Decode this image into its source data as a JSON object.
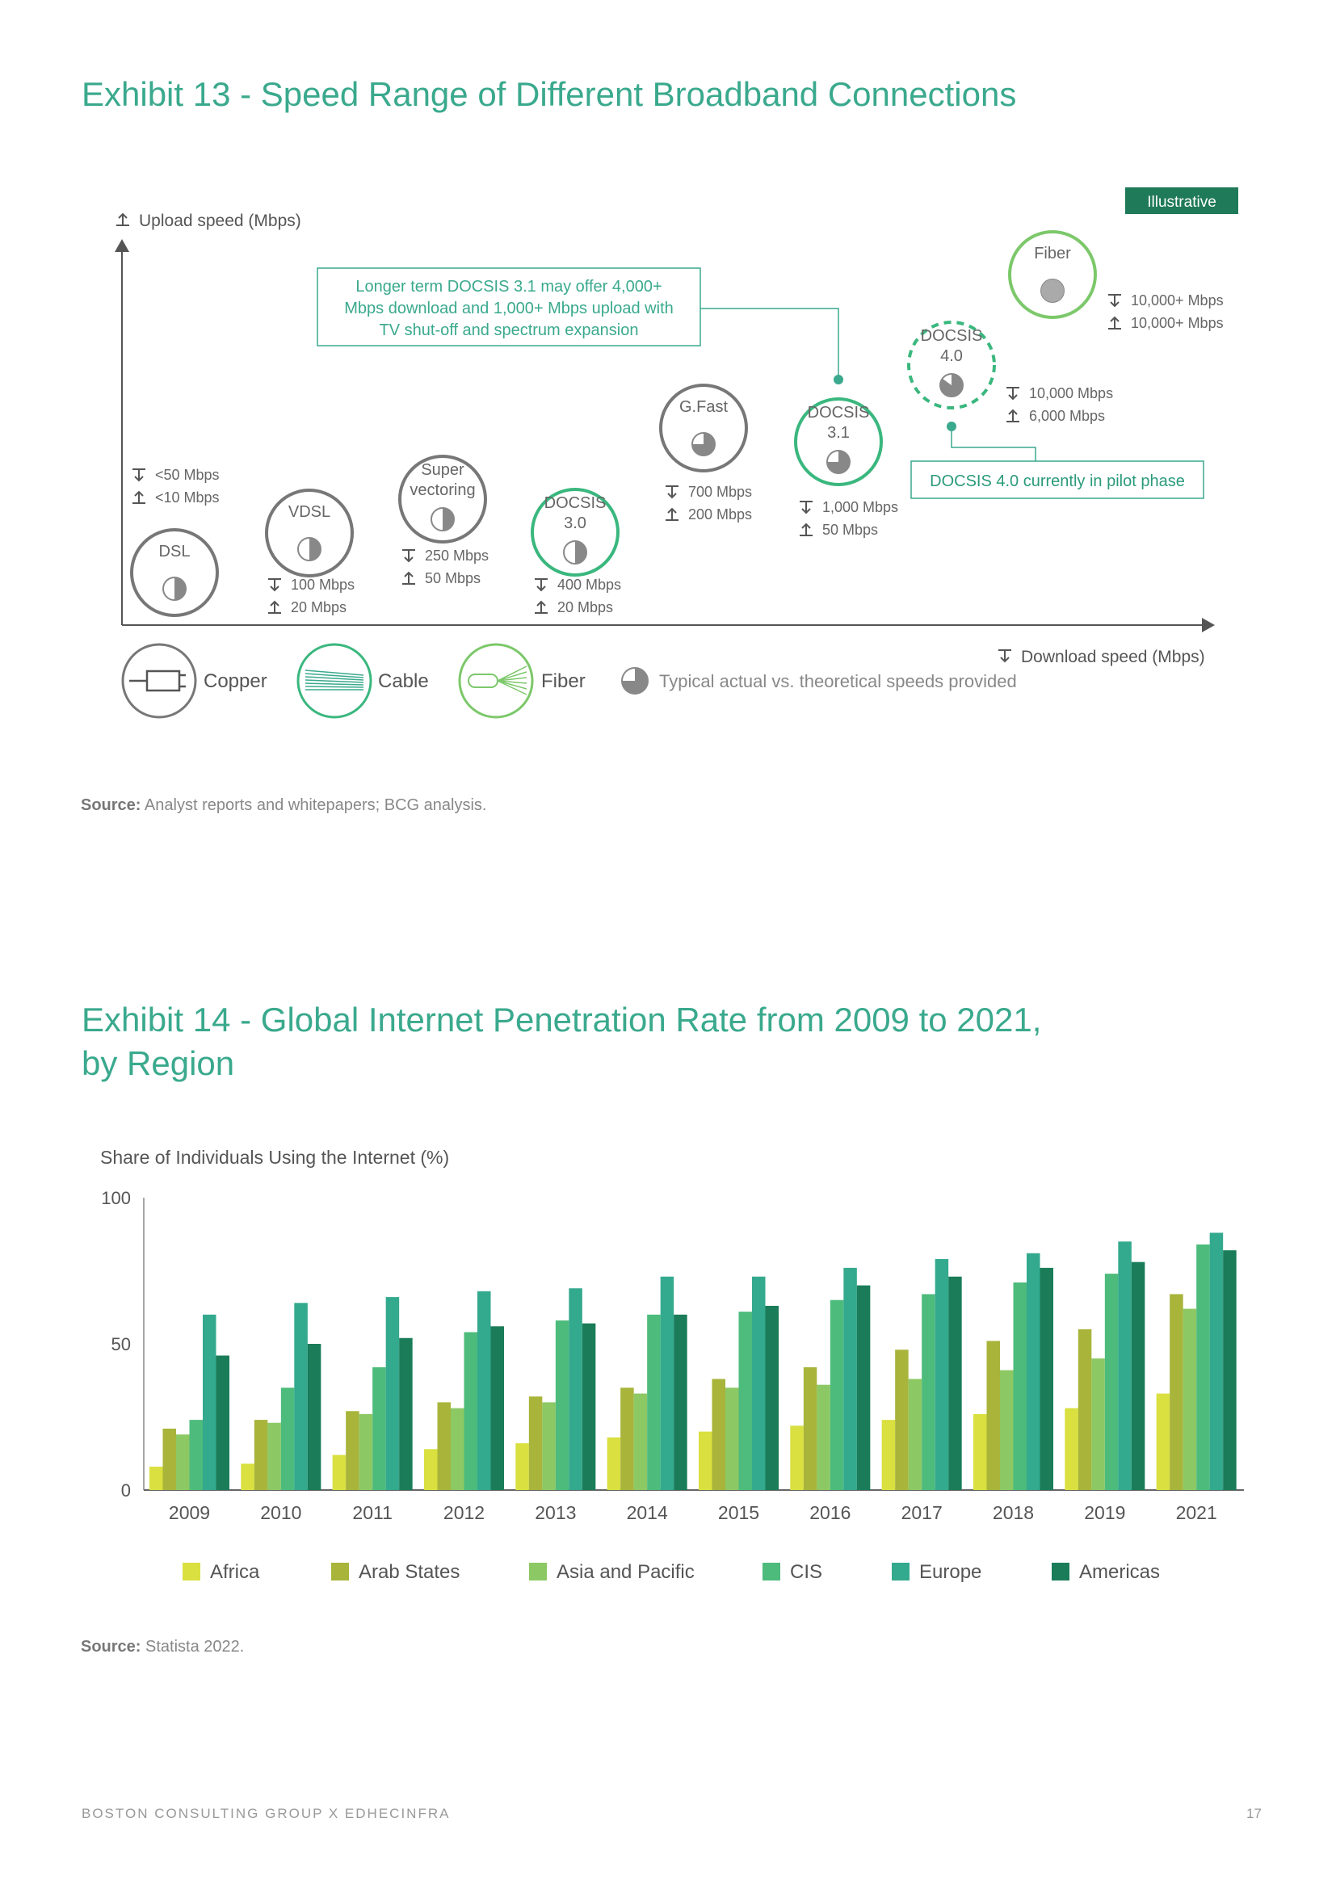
{
  "exhibit13": {
    "title": "Exhibit 13 - Speed Range of Different Broadband Connections",
    "badge": "Illustrative",
    "y_axis_label": "Upload speed (Mbps)",
    "x_axis_label": "Download speed (Mbps)",
    "callout_docsis31": [
      "Longer term DOCSIS 3.1 may offer 4,000+",
      "Mbps download and 1,000+ Mbps upload with",
      "TV shut-off and spectrum expansion"
    ],
    "callout_docsis40": "DOCSIS 4.0 currently in pilot phase",
    "technologies": [
      {
        "name": [
          "DSL"
        ],
        "type": "copper",
        "download": "<50 Mbps",
        "upload": "<10 Mbps",
        "fill": 0.5
      },
      {
        "name": [
          "VDSL"
        ],
        "type": "copper",
        "download": "100 Mbps",
        "upload": "20 Mbps",
        "fill": 0.5
      },
      {
        "name": [
          "Super",
          "vectoring"
        ],
        "type": "copper",
        "download": "250 Mbps",
        "upload": "50 Mbps",
        "fill": 0.5
      },
      {
        "name": [
          "DOCSIS",
          "3.0"
        ],
        "type": "cable",
        "download": "400 Mbps",
        "upload": "20 Mbps",
        "fill": 0.5
      },
      {
        "name": [
          "G.Fast"
        ],
        "type": "copper",
        "download": "700 Mbps",
        "upload": "200 Mbps",
        "fill": 0.75
      },
      {
        "name": [
          "DOCSIS",
          "3.1"
        ],
        "type": "cable",
        "download": "1,000 Mbps",
        "upload": "50 Mbps",
        "fill": 0.75
      },
      {
        "name": [
          "DOCSIS",
          "4.0"
        ],
        "type": "cable",
        "download": "10,000 Mbps",
        "upload": "6,000 Mbps",
        "fill": 0.85
      },
      {
        "name": [
          "Fiber"
        ],
        "type": "fiber",
        "download": "10,000+ Mbps",
        "upload": "10,000+ Mbps",
        "fill": 1.0
      }
    ],
    "legend": {
      "copper": "Copper",
      "cable": "Cable",
      "fiber": "Fiber",
      "speeds_note": "Typical actual vs. theoretical speeds provided"
    },
    "source_label": "Source:",
    "source_text": " Analyst reports and whitepapers; BCG analysis."
  },
  "exhibit14": {
    "title_line1": "Exhibit 14 - Global Internet Penetration Rate from 2009 to 2021,",
    "title_line2": "by Region",
    "source_label": "Source:",
    "source_text": " Statista 2022."
  },
  "chart_data": {
    "type": "bar",
    "title": "Exhibit 14 - Global Internet Penetration Rate from 2009 to 2021, by Region",
    "ylabel": "Share of Individuals Using the Internet (%)",
    "xlabel": "",
    "ylim": [
      0,
      100
    ],
    "yticks": [
      0,
      50,
      100
    ],
    "categories": [
      "2009",
      "2010",
      "2011",
      "2012",
      "2013",
      "2014",
      "2015",
      "2016",
      "2017",
      "2018",
      "2019",
      "2021"
    ],
    "series": [
      {
        "name": "Africa",
        "color": "#d9e03f",
        "values": [
          8,
          9,
          12,
          14,
          16,
          18,
          20,
          22,
          24,
          26,
          28,
          33
        ]
      },
      {
        "name": "Arab States",
        "color": "#a8b43a",
        "values": [
          21,
          24,
          27,
          30,
          32,
          35,
          38,
          42,
          48,
          51,
          55,
          67
        ]
      },
      {
        "name": "Asia and Pacific",
        "color": "#8cc864",
        "values": [
          19,
          23,
          26,
          28,
          30,
          33,
          35,
          36,
          38,
          41,
          45,
          62
        ]
      },
      {
        "name": "CIS",
        "color": "#4dbb7c",
        "values": [
          24,
          35,
          42,
          54,
          58,
          60,
          61,
          65,
          67,
          71,
          74,
          84
        ]
      },
      {
        "name": "Europe",
        "color": "#33a98e",
        "values": [
          60,
          64,
          66,
          68,
          69,
          73,
          73,
          76,
          79,
          81,
          85,
          88
        ]
      },
      {
        "name": "Americas",
        "color": "#1a7c58",
        "values": [
          46,
          50,
          52,
          56,
          57,
          60,
          63,
          70,
          73,
          76,
          78,
          82
        ]
      }
    ]
  },
  "footer": {
    "left": "BOSTON CONSULTING GROUP   X   EDHECINFRA",
    "page": "17"
  }
}
